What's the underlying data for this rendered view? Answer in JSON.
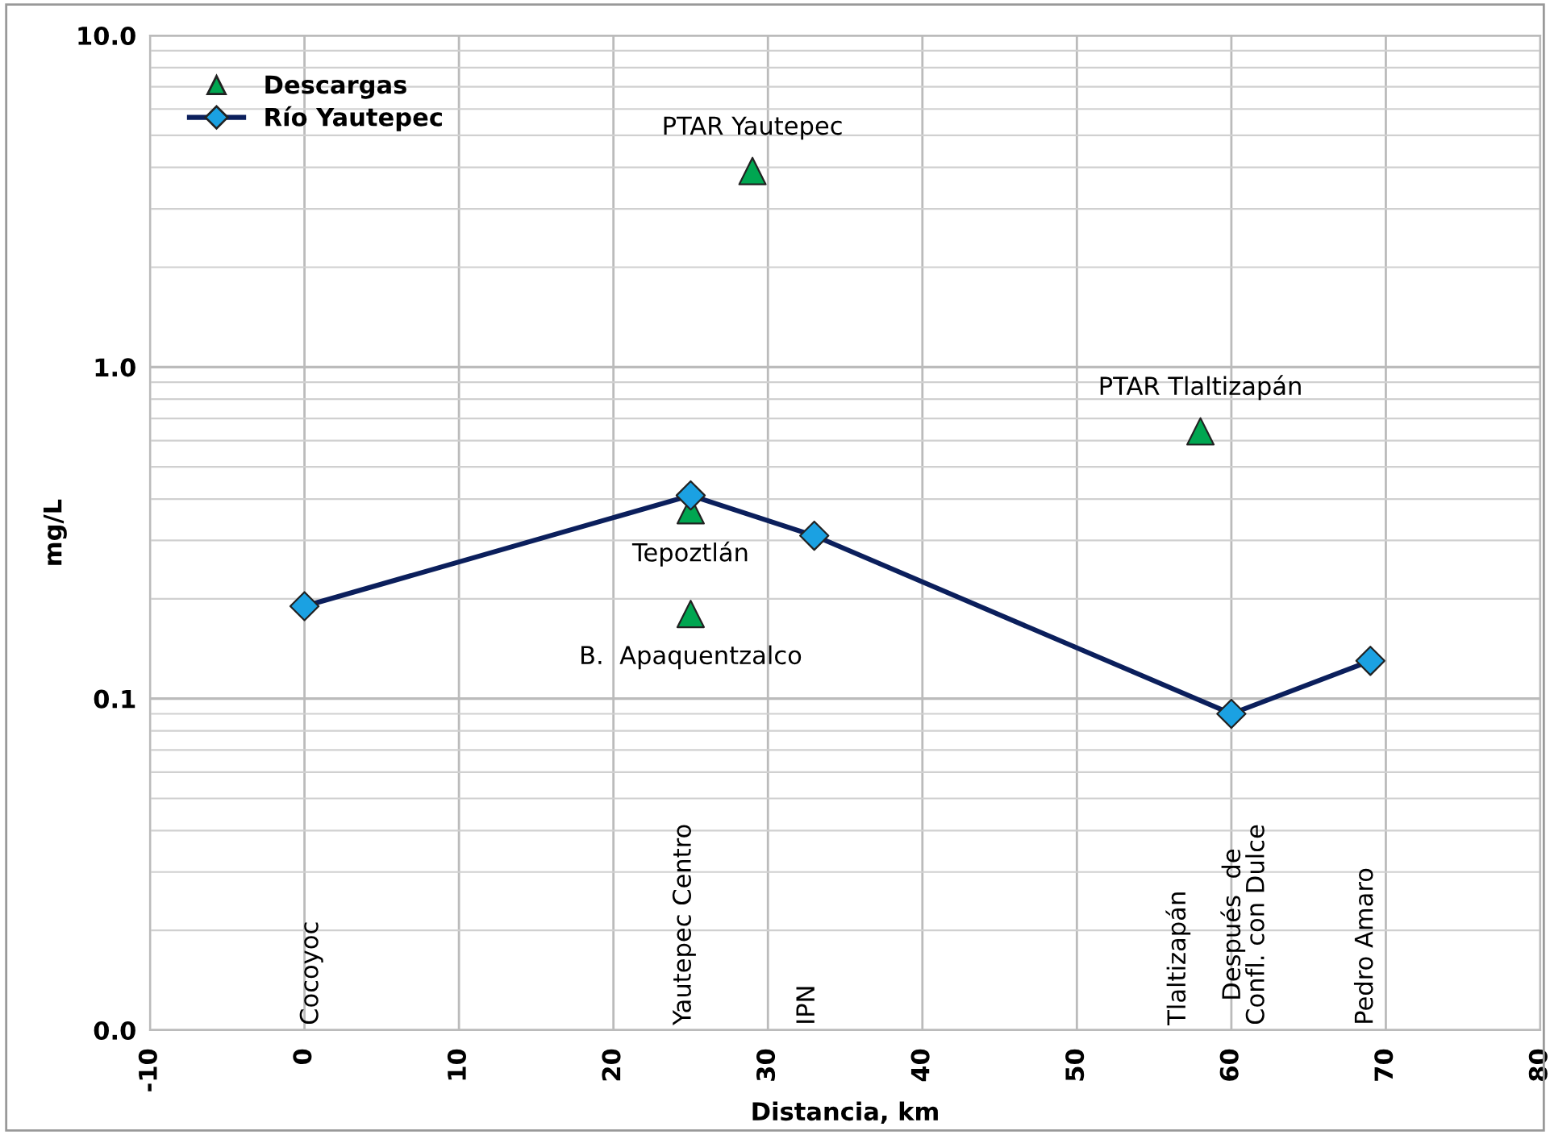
{
  "chart_data": {
    "type": "scatter",
    "xlabel": "Distancia, km",
    "ylabel": "mg/L",
    "xlim": [
      -10,
      80
    ],
    "xticks": [
      -10,
      0,
      10,
      20,
      30,
      40,
      50,
      60,
      70,
      80
    ],
    "ylim": [
      0.01,
      10
    ],
    "yticks": [
      {
        "value": 0.01,
        "label": "0.0"
      },
      {
        "value": 0.1,
        "label": "0.1"
      },
      {
        "value": 1,
        "label": "1.0"
      },
      {
        "value": 10,
        "label": "10.0"
      }
    ],
    "log": "y",
    "grid": true,
    "legend": "top left",
    "series": [
      {
        "name": "Descargas",
        "marker": "triangle",
        "color": "#00a651",
        "x": [
          25,
          25,
          29,
          58
        ],
        "values": [
          0.37,
          0.18,
          3.9,
          0.64
        ]
      },
      {
        "name": "Río Yautepec",
        "type": "line",
        "marker": "diamond",
        "color": "#0b1f5c",
        "colors": [
          "#1ba1e2",
          "#1ba1e2",
          "#1ba1e2",
          "#1ba1e2",
          "#1ba1e2"
        ],
        "x": [
          0,
          25,
          33,
          60,
          69
        ],
        "values": [
          0.19,
          0.41,
          0.31,
          0.09,
          0.13
        ]
      }
    ],
    "annotations": [
      {
        "text": "PTAR Yautepec",
        "x": 29,
        "y": 3.9
      },
      {
        "text": "PTAR Tlaltizapán",
        "x": 58,
        "y": 0.64
      },
      {
        "text": "Tepoztlán",
        "x": 25,
        "y": 0.37
      },
      {
        "text": "B.  Apaquentzalco",
        "x": 25,
        "y": 0.18
      },
      "Cocoyoc",
      "Yautepec Centro",
      "IPN",
      "Tlaltizapán",
      "Después  de\nConfl. con Dulce",
      "Pedro Amaro"
    ]
  }
}
